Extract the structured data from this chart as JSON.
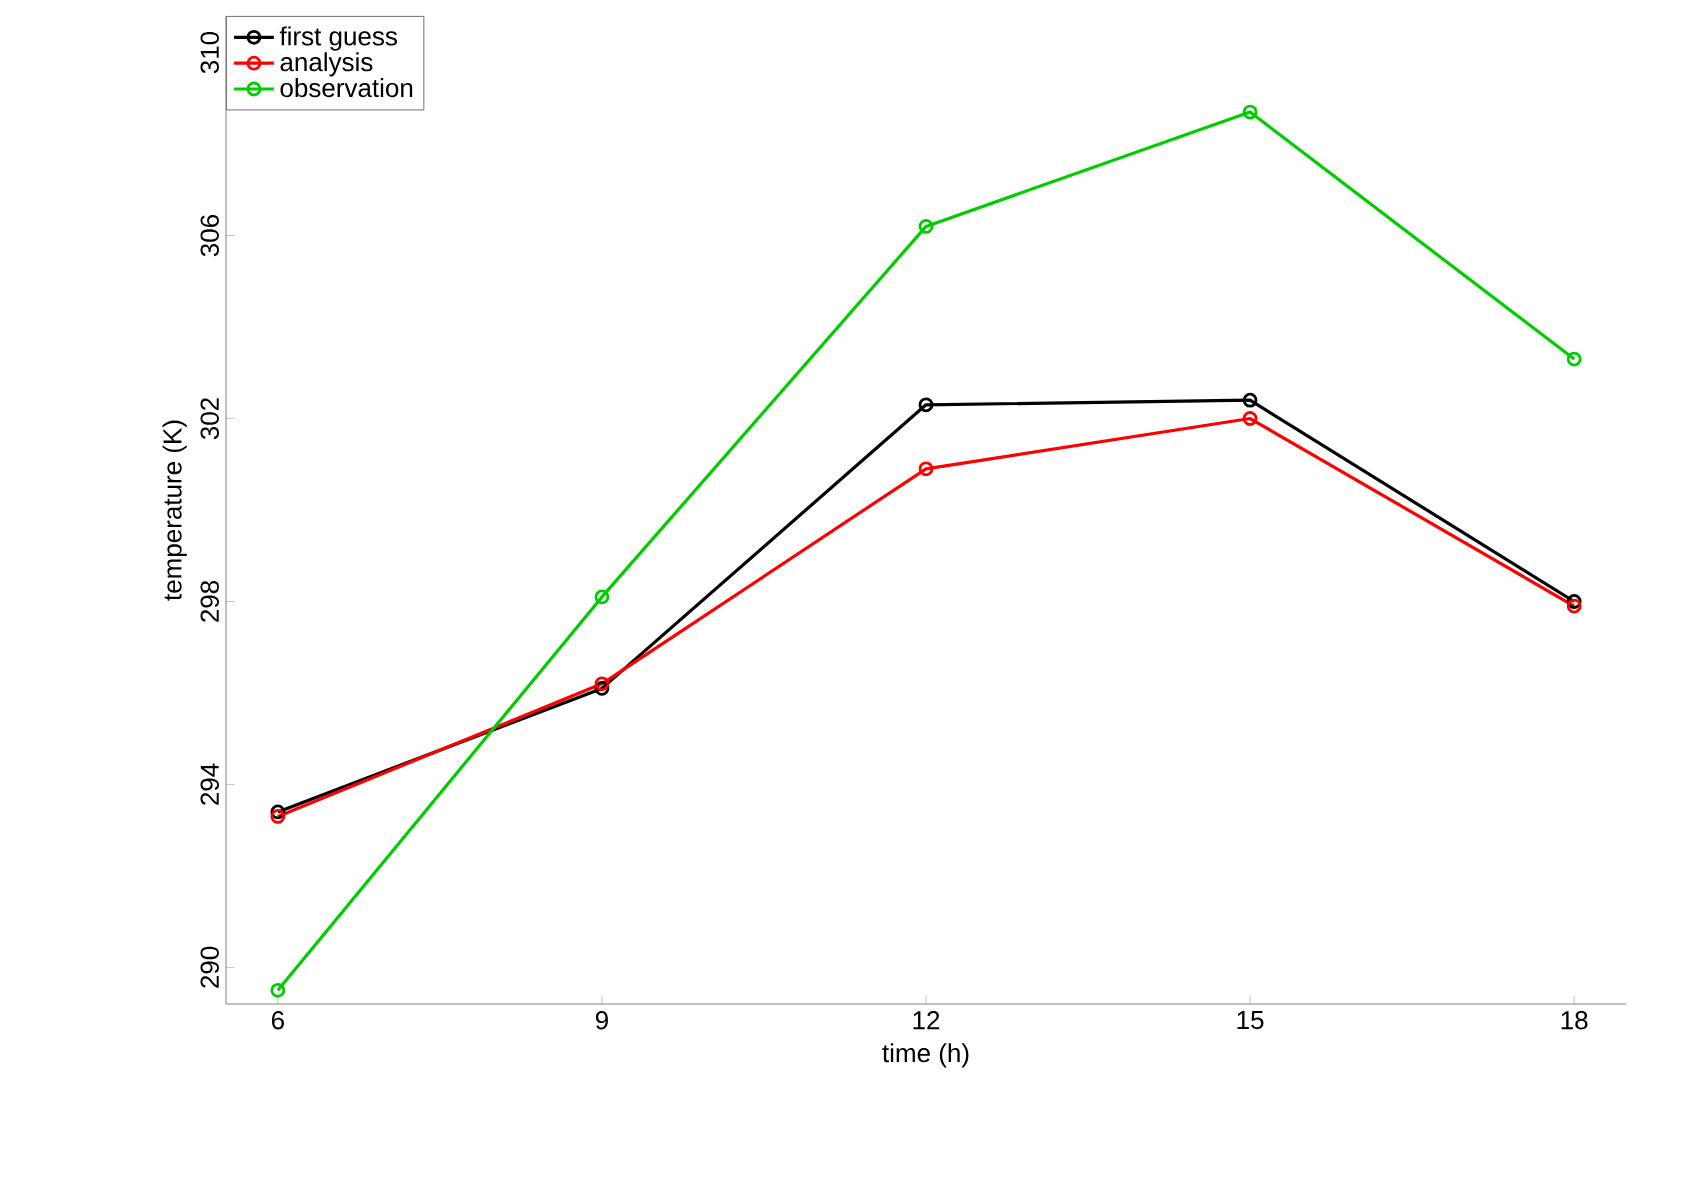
{
  "chart_data": {
    "type": "line",
    "xlabel": "time (h)",
    "ylabel": "temperature (K)",
    "x": [
      6,
      9,
      12,
      15,
      18
    ],
    "series": [
      {
        "name": "first guess",
        "color": "#000000",
        "values": [
          293.4,
          296.1,
          302.3,
          302.4,
          298.0
        ]
      },
      {
        "name": "analysis",
        "color": "#ff0000",
        "values": [
          293.3,
          296.2,
          300.9,
          302.0,
          297.9
        ]
      },
      {
        "name": "observation",
        "color": "#00cd00",
        "values": [
          289.5,
          298.1,
          306.2,
          308.7,
          303.3
        ]
      }
    ],
    "xlim": [
      5.52,
      18.48
    ],
    "ylim": [
      289.2,
      310.8
    ],
    "xticks": [
      6,
      9,
      12,
      15,
      18
    ],
    "yticks": [
      290,
      294,
      298,
      302,
      306,
      310
    ],
    "legend": "top left",
    "marker": "circle",
    "line_style": "solid",
    "grid": false
  }
}
